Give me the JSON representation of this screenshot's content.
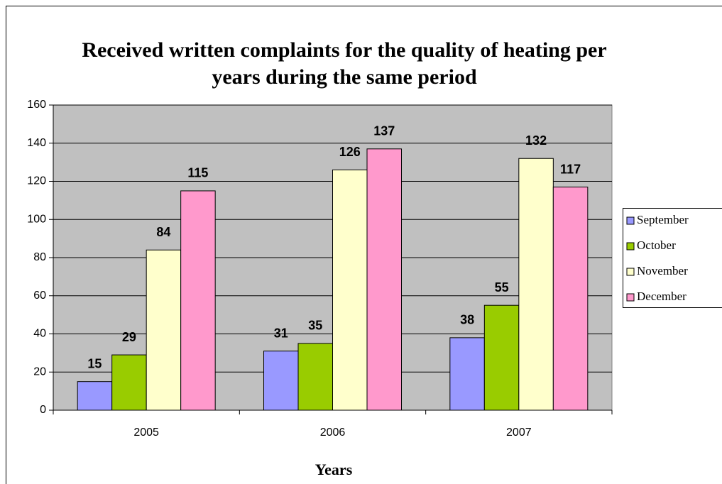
{
  "chart_data": {
    "type": "bar",
    "title": "Received written complaints for the quality of heating per years during the same period",
    "x_label": "Years",
    "categories": [
      "2005",
      "2006",
      "2007"
    ],
    "series": [
      {
        "name": "September",
        "color": "#9999ff",
        "values": [
          15,
          31,
          38
        ]
      },
      {
        "name": "October",
        "color": "#99cc00",
        "values": [
          29,
          35,
          55
        ]
      },
      {
        "name": "November",
        "color": "#ffffcc",
        "values": [
          84,
          126,
          132
        ]
      },
      {
        "name": "December",
        "color": "#ff99cc",
        "values": [
          115,
          137,
          117
        ]
      }
    ],
    "ylim": [
      0,
      160
    ],
    "yticks": [
      0,
      20,
      40,
      60,
      80,
      100,
      120,
      140,
      160
    ],
    "grid": true,
    "legend": "right",
    "plot_background": "#c0c0c0"
  }
}
